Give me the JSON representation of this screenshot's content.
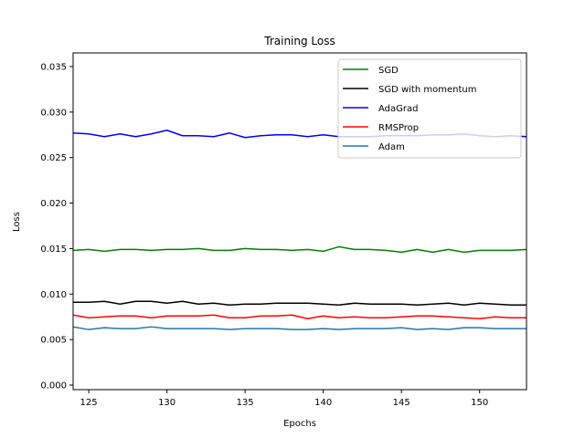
{
  "chart_data": {
    "type": "line",
    "title": "Training Loss",
    "xlabel": "Epochs",
    "ylabel": "Loss",
    "xlim": [
      124,
      153
    ],
    "ylim": [
      -0.0005,
      0.0365
    ],
    "xticks": [
      125,
      130,
      135,
      140,
      145,
      150
    ],
    "xtick_labels": [
      "125",
      "130",
      "135",
      "140",
      "145",
      "150"
    ],
    "yticks": [
      0.0,
      0.005,
      0.01,
      0.015,
      0.02,
      0.025,
      0.03,
      0.035
    ],
    "ytick_labels": [
      "0.000",
      "0.005",
      "0.010",
      "0.015",
      "0.020",
      "0.025",
      "0.030",
      "0.035"
    ],
    "grid": false,
    "legend_position": "top-right",
    "x": [
      124,
      125,
      126,
      127,
      128,
      129,
      130,
      131,
      132,
      133,
      134,
      135,
      136,
      137,
      138,
      139,
      140,
      141,
      142,
      143,
      144,
      145,
      146,
      147,
      148,
      149,
      150,
      151,
      152,
      153
    ],
    "series": [
      {
        "name": "SGD",
        "color": "#008000",
        "values": [
          0.0148,
          0.0149,
          0.0147,
          0.0149,
          0.0149,
          0.0148,
          0.0149,
          0.0149,
          0.015,
          0.0148,
          0.0148,
          0.015,
          0.0149,
          0.0149,
          0.0148,
          0.0149,
          0.0147,
          0.0152,
          0.0149,
          0.0149,
          0.0148,
          0.0146,
          0.0149,
          0.0146,
          0.0149,
          0.0146,
          0.0148,
          0.0148,
          0.0148,
          0.0149
        ]
      },
      {
        "name": "SGD with momentum",
        "color": "#000000",
        "values": [
          0.0091,
          0.0091,
          0.0092,
          0.0089,
          0.0092,
          0.0092,
          0.009,
          0.0092,
          0.0089,
          0.009,
          0.0088,
          0.0089,
          0.0089,
          0.009,
          0.009,
          0.009,
          0.0089,
          0.0088,
          0.009,
          0.0089,
          0.0089,
          0.0089,
          0.0088,
          0.0089,
          0.009,
          0.0088,
          0.009,
          0.0089,
          0.0088,
          0.0088
        ]
      },
      {
        "name": "AdaGrad",
        "color": "#0000ff",
        "values": [
          0.0277,
          0.0276,
          0.0273,
          0.0276,
          0.0273,
          0.0276,
          0.028,
          0.0274,
          0.0274,
          0.0273,
          0.0277,
          0.0272,
          0.0274,
          0.0275,
          0.0275,
          0.0273,
          0.0275,
          0.0273,
          0.0273,
          0.0273,
          0.0274,
          0.0274,
          0.0274,
          0.0275,
          0.0275,
          0.0276,
          0.0274,
          0.0273,
          0.0274,
          0.0273
        ]
      },
      {
        "name": "RMSProp",
        "color": "#ff0000",
        "values": [
          0.0077,
          0.0074,
          0.0075,
          0.0076,
          0.0076,
          0.0074,
          0.0076,
          0.0076,
          0.0076,
          0.0077,
          0.0074,
          0.0074,
          0.0076,
          0.0076,
          0.0077,
          0.0073,
          0.0076,
          0.0074,
          0.0075,
          0.0074,
          0.0074,
          0.0075,
          0.0076,
          0.0076,
          0.0075,
          0.0074,
          0.0073,
          0.0075,
          0.0074,
          0.0074
        ]
      },
      {
        "name": "Adam",
        "color": "#1f77b4",
        "values": [
          0.0064,
          0.0061,
          0.0063,
          0.0062,
          0.0062,
          0.0064,
          0.0062,
          0.0062,
          0.0062,
          0.0062,
          0.0061,
          0.0062,
          0.0062,
          0.0062,
          0.0061,
          0.0061,
          0.0062,
          0.0061,
          0.0062,
          0.0062,
          0.0062,
          0.0063,
          0.0061,
          0.0062,
          0.0061,
          0.0063,
          0.0063,
          0.0062,
          0.0062,
          0.0062
        ]
      }
    ]
  }
}
